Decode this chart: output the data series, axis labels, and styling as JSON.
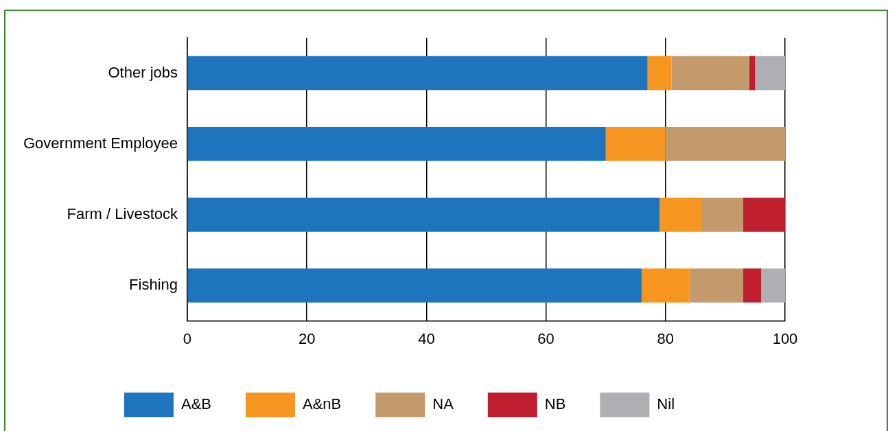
{
  "chart_data": {
    "type": "bar",
    "orientation": "horizontal",
    "stacked": true,
    "categories": [
      "Other jobs",
      "Government Employee",
      "Farm / Livestock",
      "Fishing"
    ],
    "series": [
      {
        "name": "A&B",
        "color": "#1f75bd",
        "values": [
          77,
          70,
          79,
          76
        ]
      },
      {
        "name": "A&nB",
        "color": "#f6951f",
        "values": [
          4,
          10,
          7,
          8
        ]
      },
      {
        "name": "NA",
        "color": "#c49a6c",
        "values": [
          13,
          20,
          7,
          9
        ]
      },
      {
        "name": "NB",
        "color": "#be1e2e",
        "values": [
          1,
          0,
          7,
          3
        ]
      },
      {
        "name": "Nil",
        "color": "#adafb2",
        "values": [
          5,
          0,
          0,
          4
        ]
      }
    ],
    "xlim": [
      0,
      100
    ],
    "xticks": [
      0,
      20,
      40,
      60,
      80,
      100
    ],
    "grid": "x",
    "legend": "bottom"
  }
}
